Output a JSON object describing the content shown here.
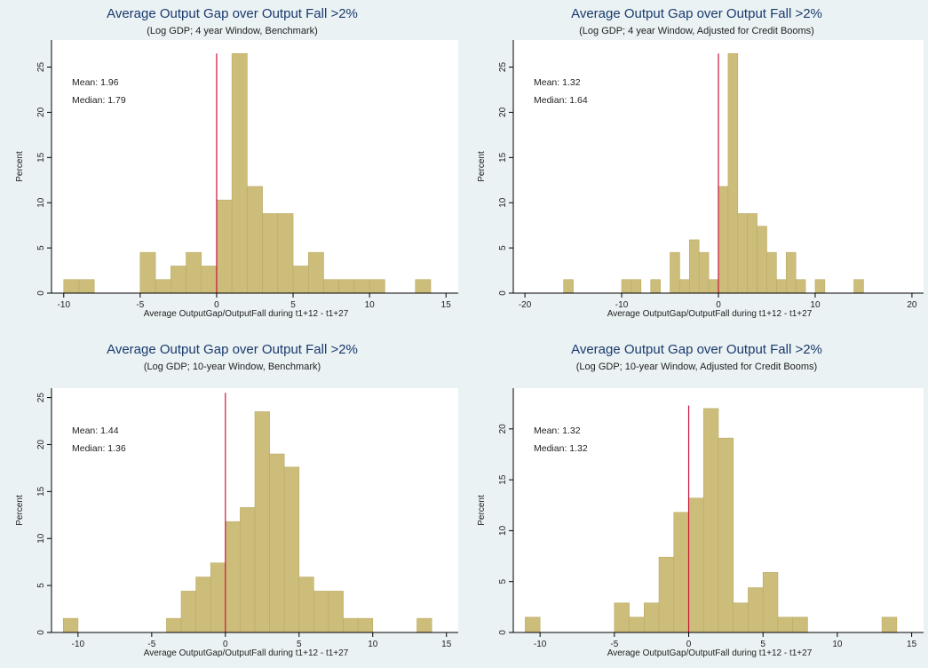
{
  "chart_data": [
    {
      "type": "bar",
      "title": "Average Output Gap over Output Fall >2%",
      "subtitle": "(Log GDP; 4 year Window, Benchmark)",
      "xlabel": "Average OutputGap/OutputFall during  t1+12 - t1+27",
      "ylabel": "Percent",
      "xlim": [
        -10.8,
        15.8
      ],
      "ylim": [
        0,
        28
      ],
      "xticks": [
        -10,
        -5,
        0,
        5,
        10,
        15
      ],
      "yticks": [
        0,
        5,
        10,
        15,
        20,
        25
      ],
      "bin_width": 1,
      "bins": [
        {
          "x0": -10,
          "value": 1.5
        },
        {
          "x0": -9,
          "value": 1.5
        },
        {
          "x0": -5,
          "value": 4.5
        },
        {
          "x0": -4,
          "value": 1.5
        },
        {
          "x0": -3,
          "value": 3.0
        },
        {
          "x0": -2,
          "value": 4.5
        },
        {
          "x0": -1,
          "value": 3.0
        },
        {
          "x0": 0,
          "value": 10.3
        },
        {
          "x0": 1,
          "value": 26.5
        },
        {
          "x0": 2,
          "value": 11.8
        },
        {
          "x0": 3,
          "value": 8.8
        },
        {
          "x0": 4,
          "value": 8.8
        },
        {
          "x0": 5,
          "value": 3.0
        },
        {
          "x0": 6,
          "value": 4.5
        },
        {
          "x0": 7,
          "value": 1.5
        },
        {
          "x0": 8,
          "value": 1.5
        },
        {
          "x0": 9,
          "value": 1.5
        },
        {
          "x0": 10,
          "value": 1.5
        },
        {
          "x0": 13,
          "value": 1.5
        }
      ],
      "refline": {
        "x": 0,
        "top": 26.5
      },
      "mean_label": "Mean:   1.96",
      "median_label": "Median: 1.79"
    },
    {
      "type": "bar",
      "title": "Average Output Gap over Output Fall >2%",
      "subtitle": "(Log GDP; 4 year Window, Adjusted for Credit Booms)",
      "xlabel": "Average OutputGap/OutputFall during  t1+12 - t1+27",
      "ylabel": "Percent",
      "xlim": [
        -21.2,
        21.2
      ],
      "ylim": [
        0,
        28
      ],
      "xticks": [
        -20,
        -10,
        0,
        10,
        20
      ],
      "yticks": [
        0,
        5,
        10,
        15,
        20,
        25
      ],
      "bin_width": 1,
      "bins": [
        {
          "x0": -16,
          "value": 1.5
        },
        {
          "x0": -10,
          "value": 1.5
        },
        {
          "x0": -9,
          "value": 1.5
        },
        {
          "x0": -7,
          "value": 1.5
        },
        {
          "x0": -5,
          "value": 4.5
        },
        {
          "x0": -4,
          "value": 1.5
        },
        {
          "x0": -3,
          "value": 5.9
        },
        {
          "x0": -2,
          "value": 4.5
        },
        {
          "x0": -1,
          "value": 1.5
        },
        {
          "x0": 0,
          "value": 11.8
        },
        {
          "x0": 1,
          "value": 26.5
        },
        {
          "x0": 2,
          "value": 8.8
        },
        {
          "x0": 3,
          "value": 8.8
        },
        {
          "x0": 4,
          "value": 7.4
        },
        {
          "x0": 5,
          "value": 4.5
        },
        {
          "x0": 6,
          "value": 1.5
        },
        {
          "x0": 7,
          "value": 4.5
        },
        {
          "x0": 8,
          "value": 1.5
        },
        {
          "x0": 10,
          "value": 1.5
        },
        {
          "x0": 14,
          "value": 1.5
        }
      ],
      "refline": {
        "x": 0,
        "top": 26.5
      },
      "mean_label": "Mean:   1.32",
      "median_label": "Median: 1.64"
    },
    {
      "type": "bar",
      "title": "Average Output Gap over Output Fall >2%",
      "subtitle": "(Log GDP; 10-year Window, Benchmark)",
      "xlabel": "Average OutputGap/OutputFall during  t1+12 - t1+27",
      "ylabel": "Percent",
      "xlim": [
        -11.8,
        15.8
      ],
      "ylim": [
        0,
        26
      ],
      "xticks": [
        -10,
        -5,
        0,
        5,
        10,
        15
      ],
      "yticks": [
        0,
        5,
        10,
        15,
        20,
        25
      ],
      "bin_width": 1,
      "bins": [
        {
          "x0": -11,
          "value": 1.5
        },
        {
          "x0": -4,
          "value": 1.5
        },
        {
          "x0": -3,
          "value": 4.4
        },
        {
          "x0": -2,
          "value": 5.9
        },
        {
          "x0": -1,
          "value": 7.4
        },
        {
          "x0": 0,
          "value": 11.8
        },
        {
          "x0": 1,
          "value": 13.3
        },
        {
          "x0": 2,
          "value": 23.5
        },
        {
          "x0": 3,
          "value": 19.0
        },
        {
          "x0": 4,
          "value": 17.6
        },
        {
          "x0": 5,
          "value": 5.9
        },
        {
          "x0": 6,
          "value": 4.4
        },
        {
          "x0": 7,
          "value": 4.4
        },
        {
          "x0": 8,
          "value": 1.5
        },
        {
          "x0": 9,
          "value": 1.5
        },
        {
          "x0": 13,
          "value": 1.5
        }
      ],
      "refline": {
        "x": 0,
        "top": 25.5
      },
      "mean_label": "Mean:   1.44",
      "median_label": "Median: 1.36"
    },
    {
      "type": "bar",
      "title": "Average Output Gap over Output Fall >2%",
      "subtitle": "(Log GDP; 10-year Window, Adjusted for Credit Booms)",
      "xlabel": "Average OutputGap/OutputFall during  t1+12 - t1+27",
      "ylabel": "Percent",
      "xlim": [
        -11.8,
        15.8
      ],
      "ylim": [
        0,
        24
      ],
      "xticks": [
        -10,
        -5,
        0,
        5,
        10,
        15
      ],
      "yticks": [
        0,
        5,
        10,
        15,
        20
      ],
      "bin_width": 1,
      "bins": [
        {
          "x0": -11,
          "value": 1.5
        },
        {
          "x0": -5,
          "value": 2.9
        },
        {
          "x0": -4,
          "value": 1.5
        },
        {
          "x0": -3,
          "value": 2.9
        },
        {
          "x0": -2,
          "value": 7.4
        },
        {
          "x0": -1,
          "value": 11.8
        },
        {
          "x0": 0,
          "value": 13.2
        },
        {
          "x0": 1,
          "value": 22.0
        },
        {
          "x0": 2,
          "value": 19.1
        },
        {
          "x0": 3,
          "value": 2.9
        },
        {
          "x0": 4,
          "value": 4.4
        },
        {
          "x0": 5,
          "value": 5.9
        },
        {
          "x0": 6,
          "value": 1.5
        },
        {
          "x0": 7,
          "value": 1.5
        },
        {
          "x0": 13,
          "value": 1.5
        }
      ],
      "refline": {
        "x": 0,
        "top": 22.3
      },
      "mean_label": "Mean:   1.32",
      "median_label": "Median: 1.32"
    }
  ]
}
